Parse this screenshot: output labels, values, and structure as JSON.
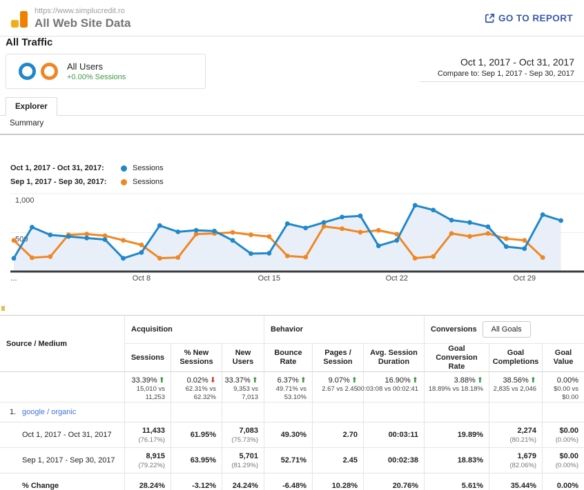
{
  "header": {
    "url": "https://www.simplucredit.ro",
    "title": "All Web Site Data",
    "go_to_report": "GO TO REPORT"
  },
  "page": {
    "section_title": "All Traffic",
    "segment": {
      "name": "All Users",
      "delta": "+0.00% Sessions"
    },
    "date_range": "Oct 1, 2017 - Oct 31, 2017",
    "compare_to": "Compare to: Sep 1, 2017 - Sep 30, 2017",
    "tab": "Explorer",
    "subtab": "Summary"
  },
  "legend": [
    {
      "label": "Oct 1, 2017 - Oct 31, 2017:",
      "series": "Sessions",
      "color": "#1f88c9"
    },
    {
      "label": "Sep 1, 2017 - Sep 30, 2017:",
      "series": "Sessions",
      "color": "#ef8724"
    }
  ],
  "chart_data": {
    "type": "line",
    "x_unit_days": [
      1,
      2,
      3,
      4,
      5,
      6,
      7,
      8,
      9,
      10,
      11,
      12,
      13,
      14,
      15,
      16,
      17,
      18,
      19,
      20,
      21,
      22,
      23,
      24,
      25,
      26,
      27,
      28,
      29,
      30,
      31
    ],
    "ylim": [
      0,
      1000
    ],
    "grid": true,
    "yticks": [
      {
        "value": 1000,
        "label": "1,000"
      },
      {
        "value": 500,
        "label": "500"
      }
    ],
    "xticks": [
      {
        "day": 1,
        "label": "..."
      },
      {
        "day": 8,
        "label": "Oct 8"
      },
      {
        "day": 15,
        "label": "Oct 15"
      },
      {
        "day": 22,
        "label": "Oct 22"
      },
      {
        "day": 29,
        "label": "Oct 29"
      }
    ],
    "series": [
      {
        "name": "Sessions — Oct 1, 2017 - Oct 31, 2017",
        "color": "#1f88c9",
        "area_fill": "#e9eff8",
        "values": [
          170,
          570,
          470,
          450,
          430,
          410,
          170,
          245,
          590,
          510,
          530,
          520,
          400,
          230,
          235,
          615,
          560,
          630,
          700,
          715,
          330,
          400,
          850,
          790,
          660,
          630,
          575,
          320,
          295,
          730,
          655
        ]
      },
      {
        "name": "Sessions — Sep 1, 2017 - Sep 30, 2017",
        "color": "#ef8724",
        "values": [
          400,
          177,
          192,
          472,
          481,
          460,
          401,
          342,
          171,
          180,
          481,
          489,
          502,
          472,
          449,
          200,
          185,
          580,
          550,
          505,
          530,
          480,
          171,
          192,
          489,
          451,
          489,
          422,
          401,
          180
        ]
      }
    ]
  },
  "table": {
    "dimension_header": "Source / Medium",
    "groups": [
      {
        "label": "Acquisition",
        "columns": [
          "Sessions",
          "% New Sessions",
          "New Users"
        ]
      },
      {
        "label": "Behavior",
        "columns": [
          "Bounce Rate",
          "Pages / Session",
          "Avg. Session Duration"
        ]
      },
      {
        "label": "Conversions",
        "goal_selector": "All Goals",
        "columns": [
          "Goal Conversion Rate",
          "Goal Completions",
          "Goal Value"
        ]
      }
    ],
    "summary": [
      {
        "pct": "33.39%",
        "dir": "up",
        "vs_lines": [
          "15,010 vs",
          "11,253"
        ]
      },
      {
        "pct": "0.02%",
        "dir": "down",
        "vs_lines": [
          "62.31% vs",
          "62.32%"
        ]
      },
      {
        "pct": "33.37%",
        "dir": "up",
        "vs_lines": [
          "9,353 vs",
          "7,013"
        ]
      },
      {
        "pct": "6.37%",
        "dir": "up",
        "vs_lines": [
          "49.71% vs",
          "53.10%"
        ]
      },
      {
        "pct": "9.07%",
        "dir": "up",
        "vs_lines": [
          "2.67 vs 2.45"
        ]
      },
      {
        "pct": "16.90%",
        "dir": "up",
        "vs_lines": [
          "00:03:08 vs 00:02:41"
        ]
      },
      {
        "pct": "3.88%",
        "dir": "up",
        "vs_lines": [
          "18.89% vs 18.18%"
        ]
      },
      {
        "pct": "38.56%",
        "dir": "up",
        "vs_lines": [
          "2,835 vs 2,046"
        ]
      },
      {
        "pct": "0.00%",
        "dir": "none",
        "vs_lines": [
          "$0.00 vs",
          "$0.00"
        ]
      }
    ],
    "rows": [
      {
        "index": "1.",
        "source": "google / organic",
        "subrows": [
          {
            "label": "Oct 1, 2017 - Oct 31, 2017",
            "bold": false,
            "cells": [
              {
                "main": "11,433",
                "sub": "(76.17%)"
              },
              {
                "main": "61.95%"
              },
              {
                "main": "7,083",
                "sub": "(75.73%)"
              },
              {
                "main": "49.30%"
              },
              {
                "main": "2.70"
              },
              {
                "main": "00:03:11"
              },
              {
                "main": "19.89%"
              },
              {
                "main": "2,274",
                "sub": "(80.21%)"
              },
              {
                "main": "$0.00",
                "sub": "(0.00%)"
              }
            ]
          },
          {
            "label": "Sep 1, 2017 - Sep 30, 2017",
            "bold": false,
            "cells": [
              {
                "main": "8,915",
                "sub": "(79.22%)"
              },
              {
                "main": "63.95%"
              },
              {
                "main": "5,701",
                "sub": "(81.29%)"
              },
              {
                "main": "52.71%"
              },
              {
                "main": "2.45"
              },
              {
                "main": "00:02:38"
              },
              {
                "main": "18.83%"
              },
              {
                "main": "1,679",
                "sub": "(82.06%)"
              },
              {
                "main": "$0.00",
                "sub": "(0.00%)"
              }
            ]
          },
          {
            "label": "% Change",
            "bold": true,
            "cells": [
              {
                "main": "28.24%"
              },
              {
                "main": "-3.12%"
              },
              {
                "main": "24.24%"
              },
              {
                "main": "-6.48%"
              },
              {
                "main": "10.28%"
              },
              {
                "main": "20.76%"
              },
              {
                "main": "5.61%"
              },
              {
                "main": "35.44%"
              },
              {
                "main": "0.00%"
              }
            ]
          }
        ]
      }
    ]
  },
  "colors": {
    "current_period_blue": "#1f88c9",
    "compare_period_orange": "#ef8724",
    "chart_area_fill": "#e9eff8",
    "positive_green": "#3c9a47",
    "negative_red": "#d13b2e",
    "link_blue": "#4272d7",
    "report_link_blue": "#3d5aa8",
    "logo_orange": "#ee8100",
    "logo_light_orange": "#f3ac19"
  }
}
